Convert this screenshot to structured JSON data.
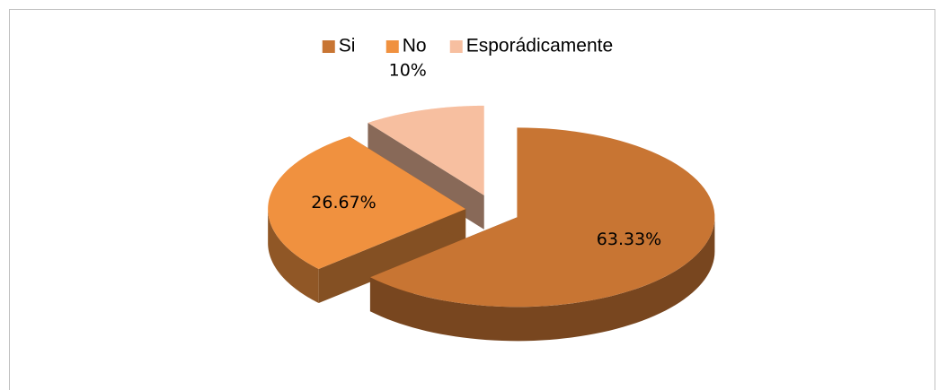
{
  "chart_data": {
    "type": "pie",
    "categories": [
      "Si",
      "No",
      "Esporádicamente"
    ],
    "values": [
      63.33,
      26.67,
      10
    ],
    "value_labels": [
      "63.33%",
      "26.67%",
      "10%"
    ],
    "colors": [
      "#c87533",
      "#f0913f",
      "#f7bfa0"
    ],
    "legend": "top"
  }
}
